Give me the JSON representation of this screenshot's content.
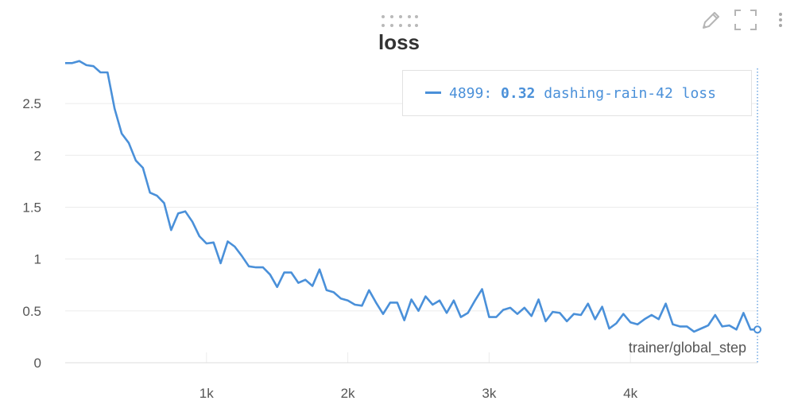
{
  "panel": {
    "title": "loss",
    "icons": {
      "edit": "pencil-icon",
      "fullscreen": "fullscreen-icon",
      "menu": "more-vertical-icon",
      "drag": "drag-handle-icon"
    }
  },
  "legend": {
    "step": "4899:",
    "value": "0.32",
    "series_label": "dashing-rain-42 loss"
  },
  "colors": {
    "line": "#4a90d9",
    "grid": "#ececec",
    "text": "#555555"
  },
  "chart_data": {
    "type": "line",
    "title": "loss",
    "xlabel": "trainer/global_step",
    "ylabel": "",
    "xlim": [
      0,
      4899
    ],
    "ylim": [
      0,
      2.9
    ],
    "x_ticks": [
      1000,
      2000,
      3000,
      4000
    ],
    "x_tick_labels": [
      "1k",
      "2k",
      "3k",
      "4k"
    ],
    "y_ticks": [
      0,
      0.5,
      1,
      1.5,
      2,
      2.5
    ],
    "y_tick_labels": [
      "0",
      "0.5",
      "1",
      "1.5",
      "2",
      "2.5"
    ],
    "grid": true,
    "legend_position": "top-right",
    "series": [
      {
        "name": "dashing-rain-42 loss",
        "x": [
          0,
          50,
          100,
          150,
          200,
          250,
          300,
          350,
          400,
          450,
          500,
          550,
          600,
          650,
          700,
          750,
          800,
          850,
          900,
          950,
          1000,
          1050,
          1100,
          1150,
          1200,
          1250,
          1300,
          1350,
          1400,
          1450,
          1500,
          1550,
          1600,
          1650,
          1700,
          1750,
          1800,
          1850,
          1900,
          1950,
          2000,
          2050,
          2100,
          2150,
          2200,
          2250,
          2300,
          2350,
          2400,
          2450,
          2500,
          2550,
          2600,
          2650,
          2700,
          2750,
          2800,
          2850,
          2900,
          2950,
          3000,
          3050,
          3100,
          3150,
          3200,
          3250,
          3300,
          3350,
          3400,
          3450,
          3500,
          3550,
          3600,
          3650,
          3700,
          3750,
          3800,
          3850,
          3900,
          3950,
          4000,
          4050,
          4100,
          4150,
          4200,
          4250,
          4300,
          4350,
          4400,
          4450,
          4500,
          4550,
          4600,
          4650,
          4700,
          4750,
          4800,
          4850,
          4899
        ],
        "y": [
          2.89,
          2.89,
          2.91,
          2.87,
          2.86,
          2.8,
          2.8,
          2.45,
          2.21,
          2.12,
          1.95,
          1.88,
          1.64,
          1.61,
          1.54,
          1.28,
          1.44,
          1.46,
          1.36,
          1.22,
          1.15,
          1.16,
          0.96,
          1.17,
          1.12,
          1.03,
          0.93,
          0.92,
          0.92,
          0.85,
          0.73,
          0.87,
          0.87,
          0.77,
          0.8,
          0.74,
          0.9,
          0.7,
          0.68,
          0.62,
          0.6,
          0.56,
          0.55,
          0.7,
          0.58,
          0.47,
          0.58,
          0.58,
          0.41,
          0.61,
          0.5,
          0.64,
          0.56,
          0.6,
          0.48,
          0.6,
          0.44,
          0.48,
          0.6,
          0.71,
          0.44,
          0.44,
          0.51,
          0.53,
          0.47,
          0.53,
          0.45,
          0.61,
          0.4,
          0.49,
          0.48,
          0.4,
          0.47,
          0.46,
          0.57,
          0.42,
          0.54,
          0.33,
          0.38,
          0.47,
          0.39,
          0.37,
          0.42,
          0.46,
          0.42,
          0.57,
          0.37,
          0.35,
          0.35,
          0.3,
          0.33,
          0.36,
          0.46,
          0.35,
          0.36,
          0.32,
          0.48,
          0.32,
          0.32
        ]
      }
    ]
  }
}
